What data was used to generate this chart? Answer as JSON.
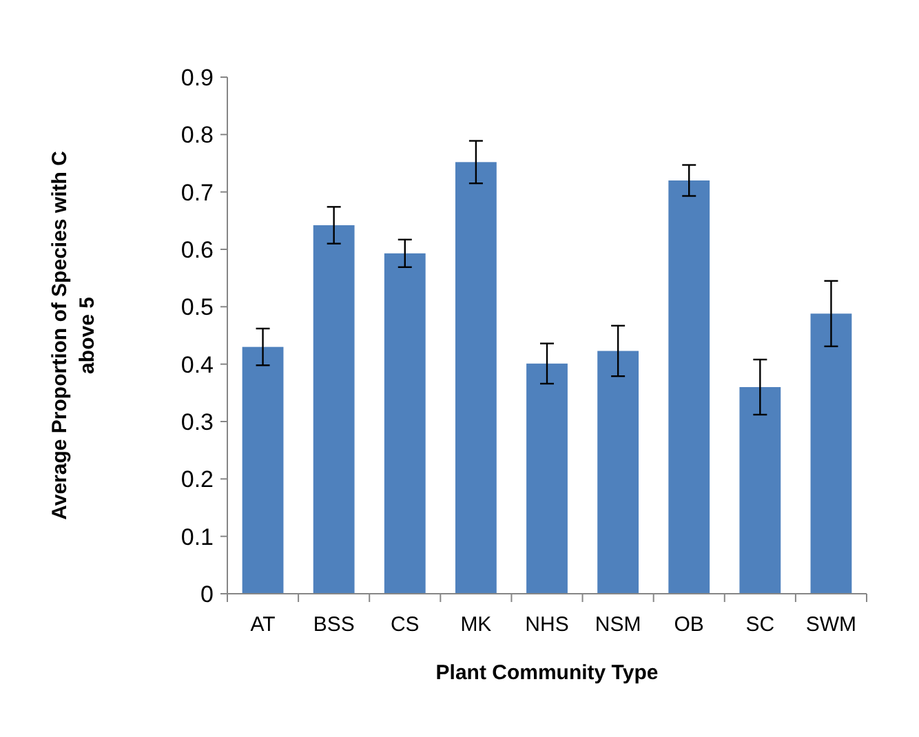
{
  "chart_data": {
    "type": "bar",
    "xlabel": "Plant Community Type",
    "ylabel": "Average Proportion of Species with C above 5",
    "categories": [
      "AT",
      "BSS",
      "CS",
      "MK",
      "NHS",
      "NSM",
      "OB",
      "SC",
      "SWM"
    ],
    "series": [
      {
        "color": "#4f81bd",
        "values": [
          0.43,
          0.642,
          0.593,
          0.752,
          0.401,
          0.423,
          0.72,
          0.36,
          0.488
        ],
        "errors": [
          0.032,
          0.032,
          0.024,
          0.037,
          0.035,
          0.044,
          0.027,
          0.048,
          0.057
        ]
      }
    ],
    "ylim": [
      0,
      0.9
    ],
    "yticks": [
      0,
      0.1,
      0.2,
      0.3,
      0.4,
      0.5,
      0.6,
      0.7,
      0.8,
      0.9
    ]
  }
}
